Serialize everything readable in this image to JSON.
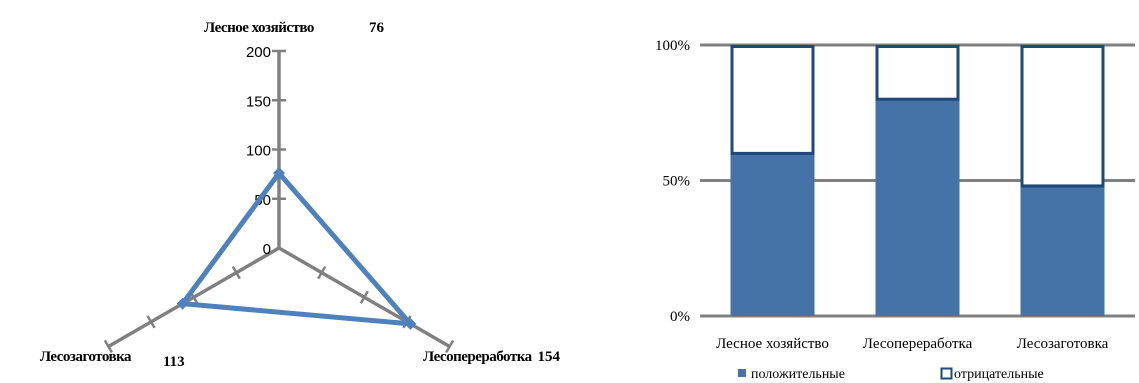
{
  "chart_data": [
    {
      "type": "radar",
      "categories": [
        "Лесное хозяйство",
        "Лесопереработка",
        "Лесозаготовка"
      ],
      "series": [
        {
          "values": [
            76,
            154,
            113
          ]
        }
      ],
      "value_labels": [
        "76",
        "154",
        "113"
      ],
      "rlim": [
        0,
        200
      ],
      "r_ticks": [
        "0",
        "50",
        "100",
        "150",
        "200"
      ],
      "colors": {
        "axis": "#808080",
        "series": "#4F81BD"
      }
    },
    {
      "type": "bar",
      "stacked": "percent",
      "categories": [
        "Лесное хозяйство",
        "Лесопереработка",
        "Лесозаготовка"
      ],
      "series": [
        {
          "name": "положительные",
          "values": [
            60,
            80,
            48
          ]
        },
        {
          "name": "отрицательные",
          "values": [
            40,
            20,
            52
          ]
        }
      ],
      "ylim": [
        0,
        100
      ],
      "y_ticks": [
        "0%",
        "50%",
        "100%"
      ],
      "grid": true,
      "legend": "bottom",
      "colors": {
        "positive": "#4572A7",
        "negative_fill": "#ffffff",
        "negative_border": "#1F497D",
        "grid": "#808080"
      }
    }
  ]
}
